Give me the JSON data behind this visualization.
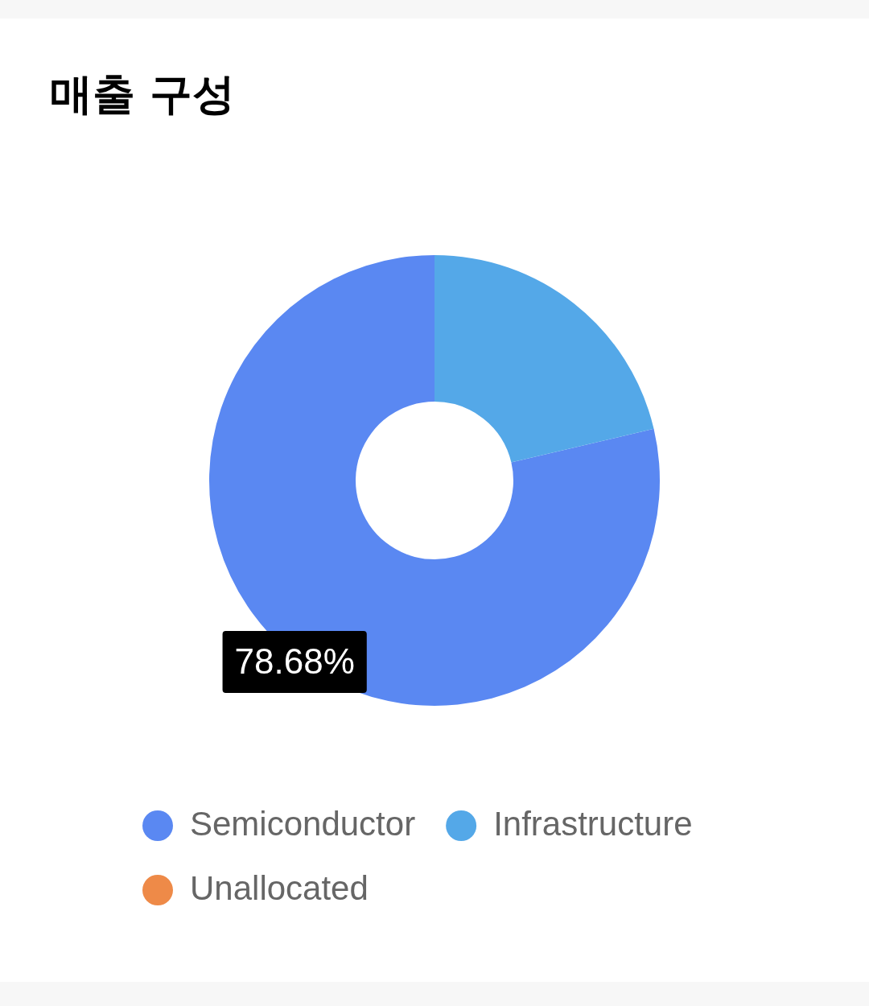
{
  "chart_data": {
    "type": "donut",
    "title": "매출 구성",
    "categories": [
      "Semiconductor",
      "Infrastructure",
      "Unallocated"
    ],
    "values": [
      78.68,
      21.32,
      0
    ],
    "colors": [
      "#5a88f2",
      "#54a8e8",
      "#ee8a48"
    ],
    "value_labels": [
      "78.68%",
      null,
      null
    ],
    "legend": "bottom"
  }
}
